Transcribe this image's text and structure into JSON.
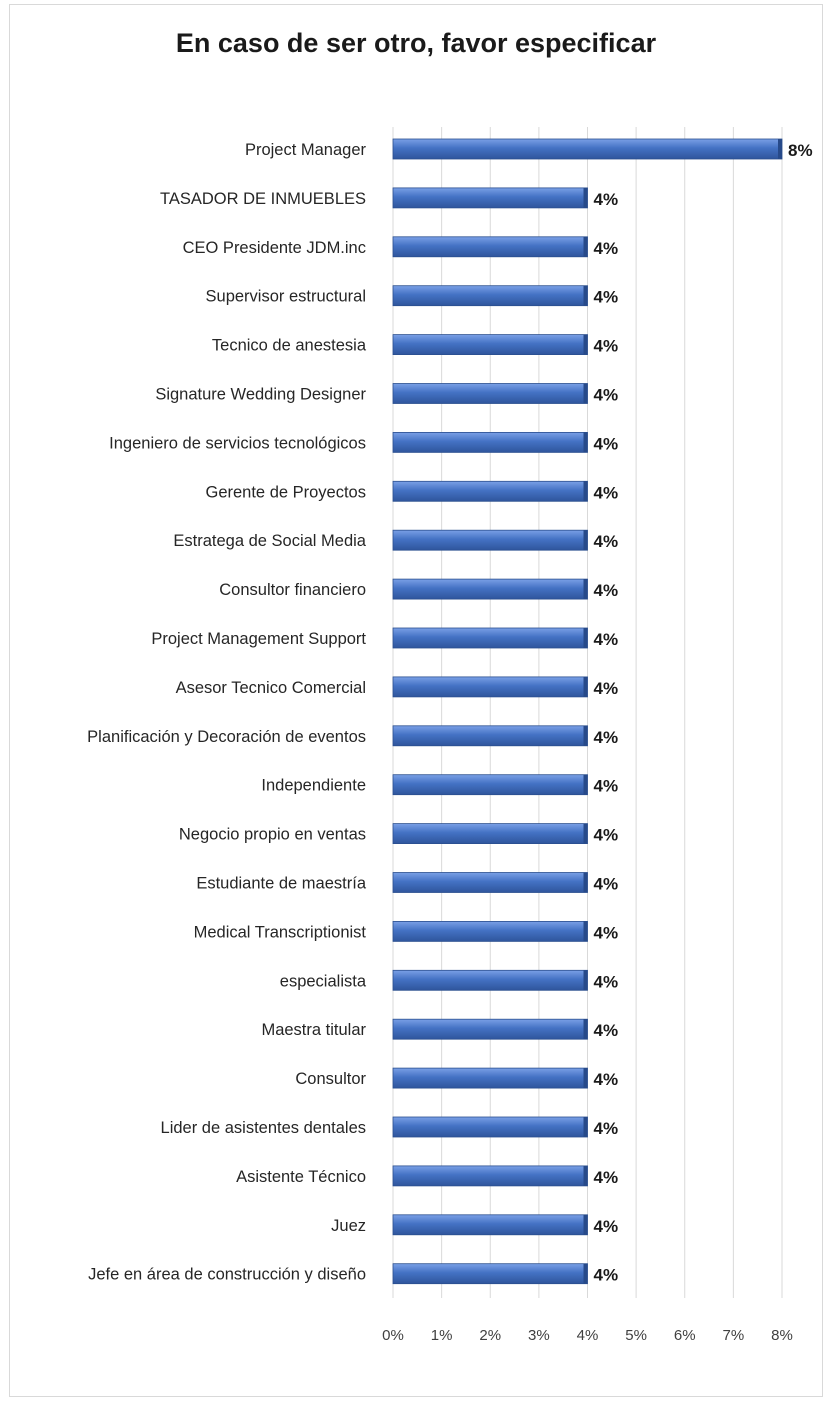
{
  "chart_data": {
    "type": "bar",
    "orientation": "horizontal",
    "title": "En caso de ser otro, favor especificar",
    "categories": [
      "Project Manager",
      "TASADOR DE INMUEBLES",
      "CEO Presidente JDM.inc",
      "Supervisor estructural",
      "Tecnico de anestesia",
      "Signature Wedding Designer",
      "Ingeniero de servicios tecnológicos",
      "Gerente de Proyectos",
      "Estratega de Social Media",
      "Consultor financiero",
      "Project Management Support",
      "Asesor Tecnico Comercial",
      "Planificación y Decoración de eventos",
      "Independiente",
      "Negocio propio en ventas",
      "Estudiante de maestría",
      "Medical Transcriptionist",
      "especialista",
      "Maestra titular",
      "Consultor",
      "Lider de asistentes dentales",
      "Asistente Técnico",
      "Juez",
      "Jefe en área de construcción y diseño"
    ],
    "values": [
      8,
      4,
      4,
      4,
      4,
      4,
      4,
      4,
      4,
      4,
      4,
      4,
      4,
      4,
      4,
      4,
      4,
      4,
      4,
      4,
      4,
      4,
      4,
      4
    ],
    "data_labels": [
      "8%",
      "4%",
      "4%",
      "4%",
      "4%",
      "4%",
      "4%",
      "4%",
      "4%",
      "4%",
      "4%",
      "4%",
      "4%",
      "4%",
      "4%",
      "4%",
      "4%",
      "4%",
      "4%",
      "4%",
      "4%",
      "4%",
      "4%",
      "4%"
    ],
    "xticks": [
      "0%",
      "1%",
      "2%",
      "3%",
      "4%",
      "5%",
      "6%",
      "7%",
      "8%"
    ],
    "xlim": [
      0,
      8
    ],
    "grid": true,
    "legend": "none",
    "bar_color": "#4472c4"
  }
}
